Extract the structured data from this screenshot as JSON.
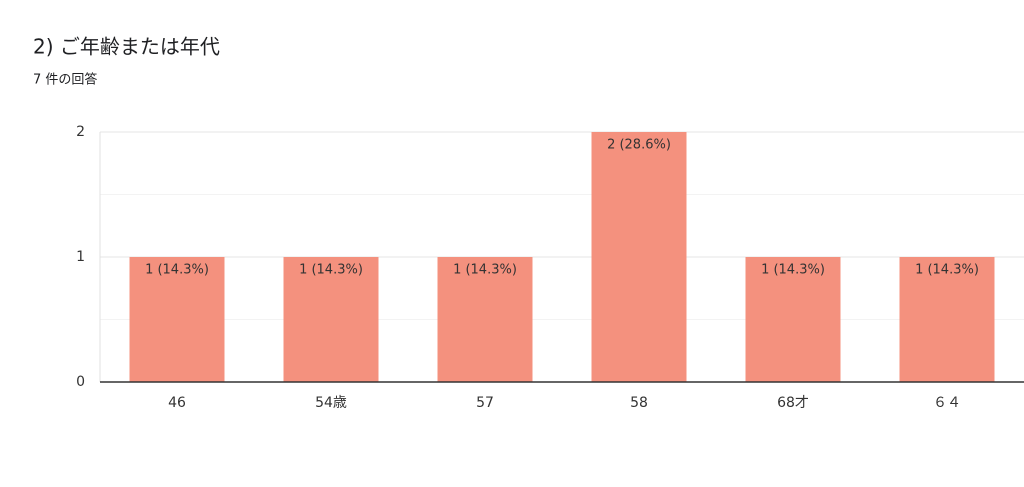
{
  "chart_data": {
    "type": "bar",
    "title": "2) ご年齢または年代",
    "subtitle": "7 件の回答",
    "categories": [
      "46",
      "54歳",
      "57",
      "58",
      "68才",
      "６４"
    ],
    "values": [
      1,
      1,
      1,
      2,
      1,
      1
    ],
    "value_labels": [
      "1 (14.3%)",
      "1 (14.3%)",
      "1 (14.3%)",
      "2 (28.6%)",
      "1 (14.3%)",
      "1 (14.3%)"
    ],
    "color": "#f4917e",
    "ylim": [
      0,
      2
    ],
    "yticks": [
      0,
      1,
      2
    ],
    "y_minor_gridlines": [
      0.5,
      1.5
    ],
    "grid": true
  }
}
